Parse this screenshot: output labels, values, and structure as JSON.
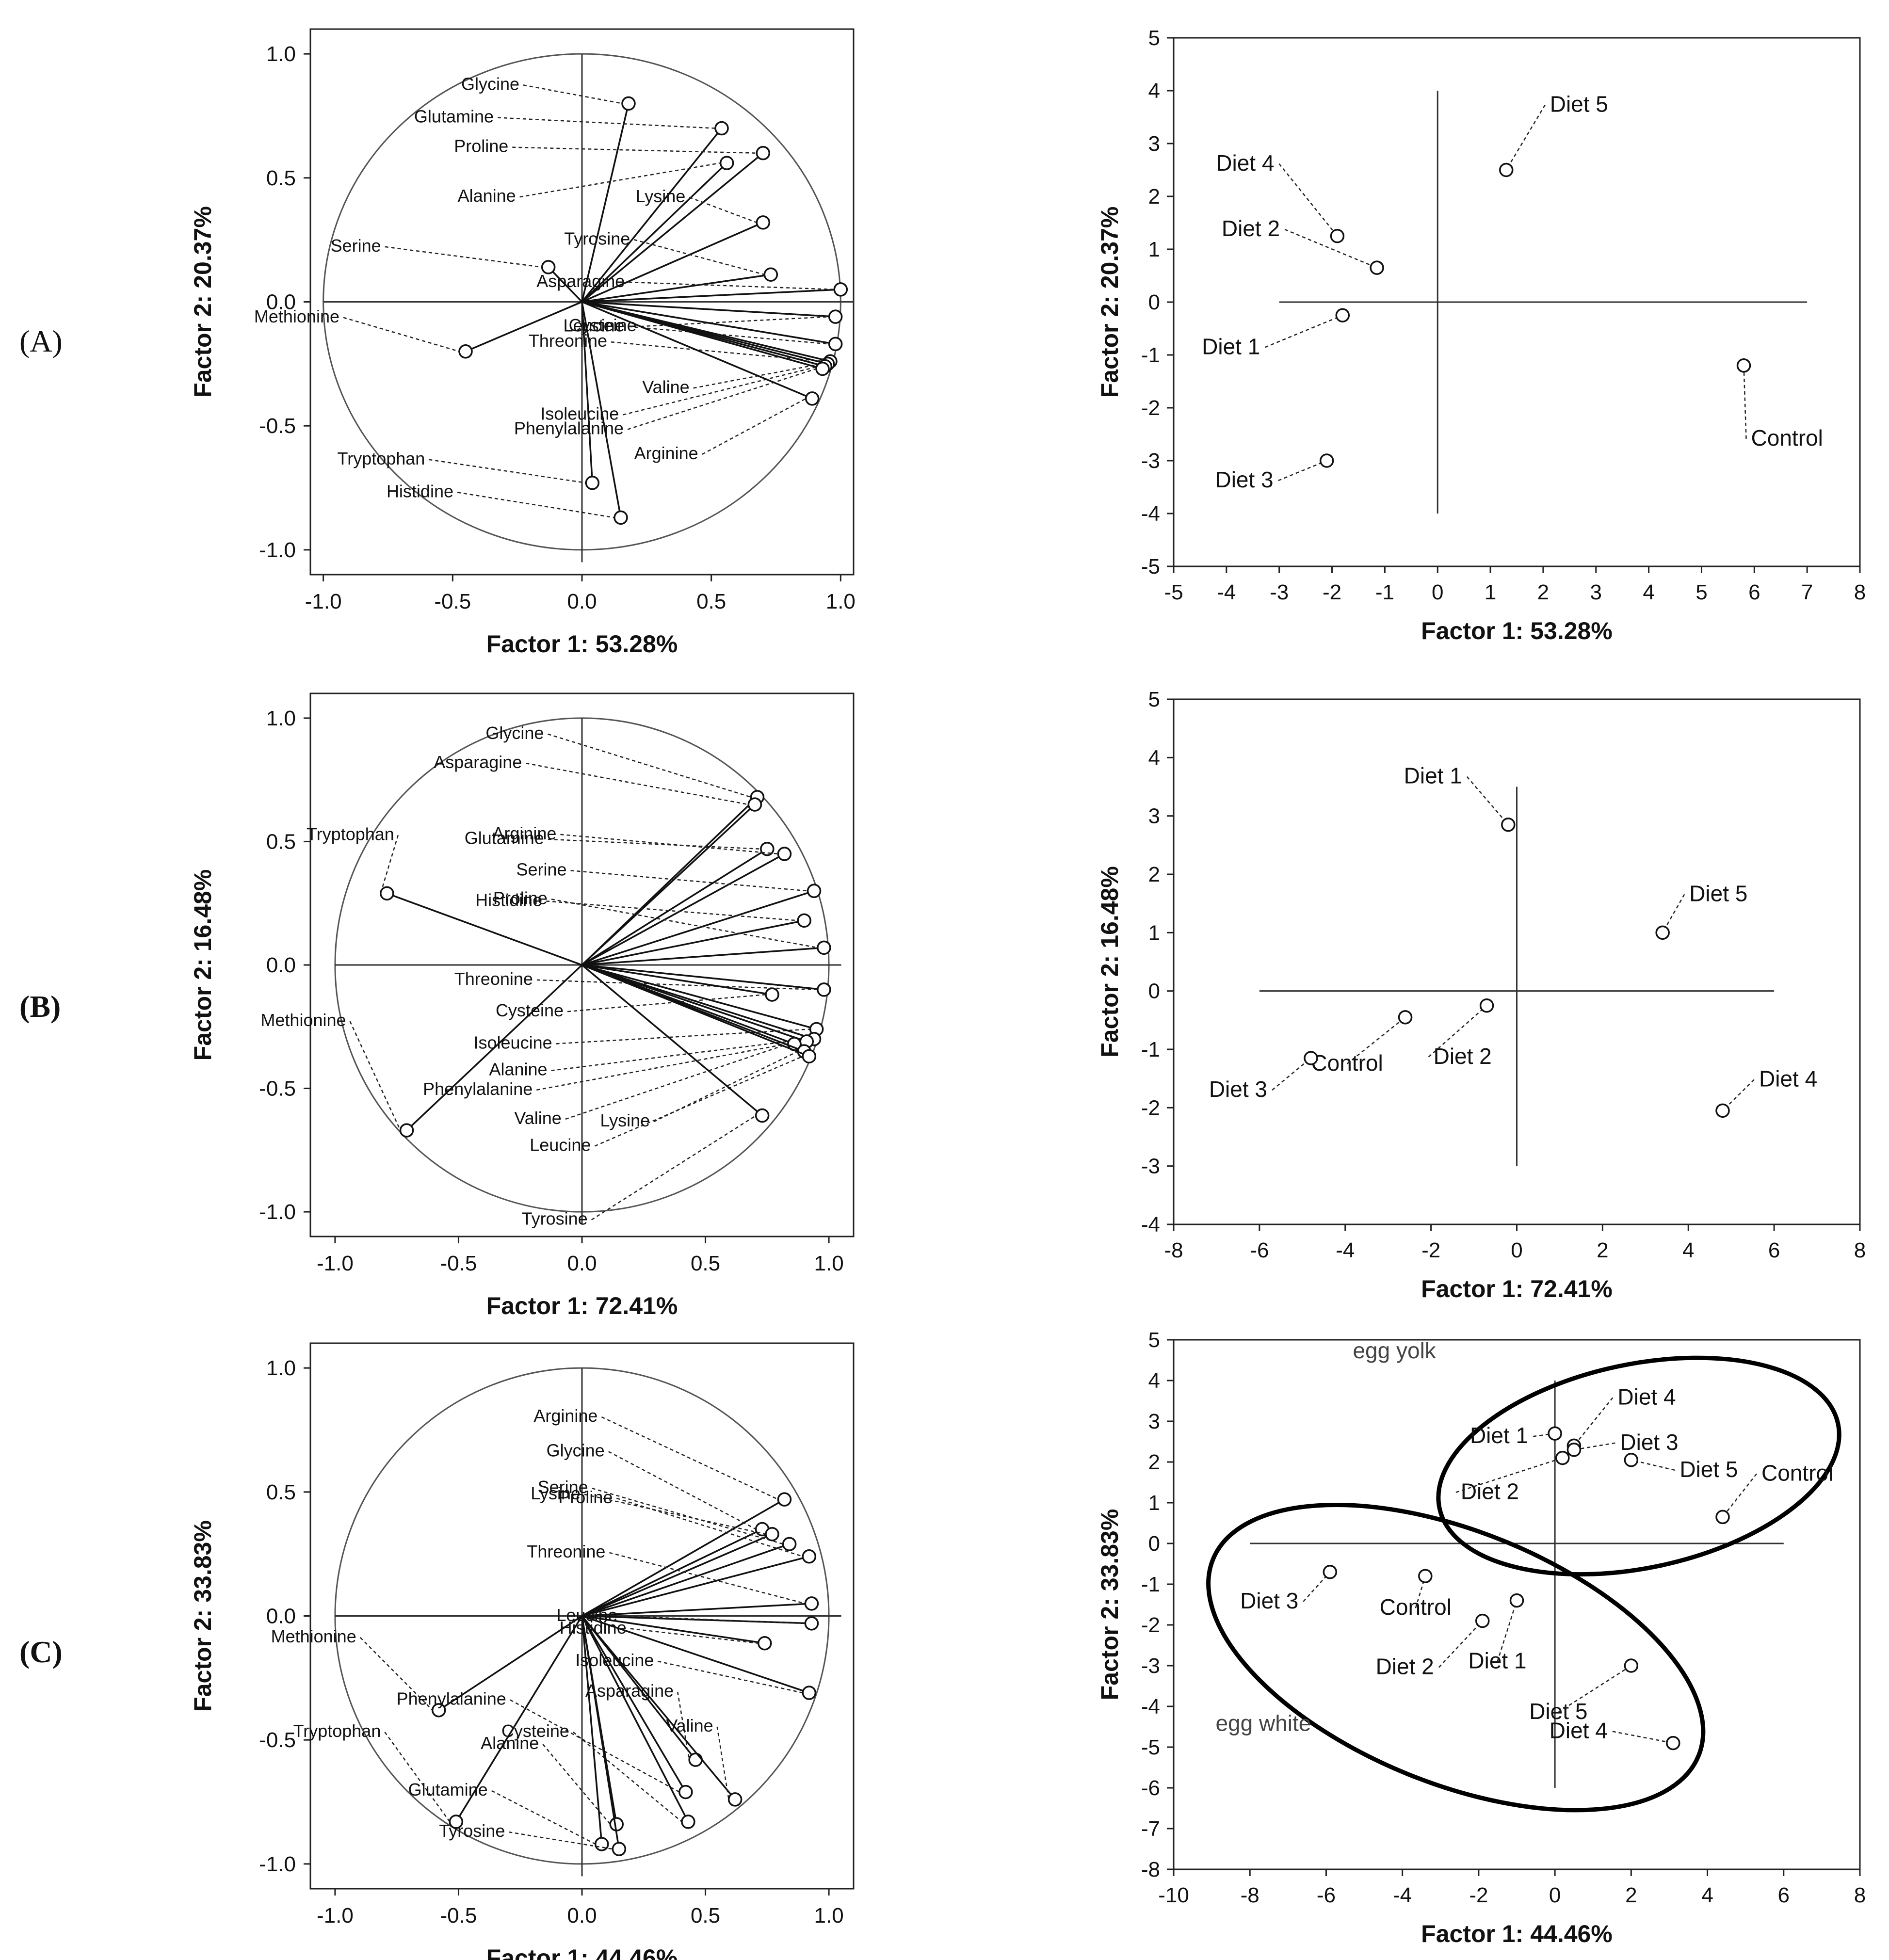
{
  "panels": [
    {
      "label": "(A)",
      "label_bold": false,
      "loadings": {
        "xlabel": "Factor 1: 53.28%",
        "ylabel": "Factor 2: 20.37%",
        "xticks": [
          "-1.0",
          "-0.5",
          "0.0",
          "0.5",
          "1.0"
        ],
        "yticks": [
          "1.0",
          "0.5",
          "0.0",
          "-0.5",
          "-1.0"
        ],
        "chart_data": {
          "type": "scatter",
          "title": "",
          "xlim": [
            -1.05,
            1.05
          ],
          "ylim": [
            -1.1,
            1.1
          ],
          "points": [
            {
              "name": "Glycine",
              "x": 0.18,
              "y": 0.8
            },
            {
              "name": "Glutamine",
              "x": 0.54,
              "y": 0.7
            },
            {
              "name": "Proline",
              "x": 0.7,
              "y": 0.6
            },
            {
              "name": "Alanine",
              "x": 0.56,
              "y": 0.56
            },
            {
              "name": "Lysine",
              "x": 0.7,
              "y": 0.32
            },
            {
              "name": "Tyrosine",
              "x": 0.73,
              "y": 0.11
            },
            {
              "name": "Asparagine",
              "x": 1.0,
              "y": 0.05
            },
            {
              "name": "Serine",
              "x": -0.13,
              "y": 0.14
            },
            {
              "name": "Cysteine",
              "x": 0.98,
              "y": -0.06
            },
            {
              "name": "Methionine",
              "x": -0.45,
              "y": -0.2
            },
            {
              "name": "Leucine",
              "x": 0.98,
              "y": -0.17
            },
            {
              "name": "Threonine",
              "x": 0.96,
              "y": -0.24
            },
            {
              "name": "Valine",
              "x": 0.95,
              "y": -0.25
            },
            {
              "name": "Isoleucine",
              "x": 0.94,
              "y": -0.26
            },
            {
              "name": "Phenylalanine",
              "x": 0.93,
              "y": -0.27
            },
            {
              "name": "Arginine",
              "x": 0.89,
              "y": -0.39
            },
            {
              "name": "Tryptophan",
              "x": 0.04,
              "y": -0.73
            },
            {
              "name": "Histidine",
              "x": 0.15,
              "y": -0.87
            }
          ]
        }
      },
      "scores": {
        "xlabel": "Factor 1: 53.28%",
        "ylabel": "Factor 2: 20.37%",
        "xticks": [
          "-5",
          "-4",
          "-3",
          "-2",
          "-1",
          "0",
          "1",
          "2",
          "3",
          "4",
          "5",
          "6",
          "7",
          "8"
        ],
        "yticks": [
          "5",
          "4",
          "3",
          "2",
          "1",
          "0",
          "-1",
          "-2",
          "-3",
          "-4",
          "-5"
        ],
        "chart_data": {
          "type": "scatter",
          "title": "",
          "xlim": [
            -5,
            8
          ],
          "ylim": [
            -5,
            5
          ],
          "points": [
            {
              "name": "Diet 5",
              "x": 1.3,
              "y": 2.5
            },
            {
              "name": "Diet 4",
              "x": -1.9,
              "y": 1.25
            },
            {
              "name": "Diet 2",
              "x": -1.15,
              "y": 0.65
            },
            {
              "name": "Diet 1",
              "x": -1.8,
              "y": -0.25
            },
            {
              "name": "Control",
              "x": 5.8,
              "y": -1.2
            },
            {
              "name": "Diet 3",
              "x": -2.1,
              "y": -3.0
            }
          ]
        }
      }
    },
    {
      "label": "(B)",
      "label_bold": true,
      "loadings": {
        "xlabel": "Factor 1: 72.41%",
        "ylabel": "Factor 2: 16.48%",
        "xticks": [
          "-1.0",
          "-0.5",
          "0.0",
          "0.5",
          "1.0"
        ],
        "yticks": [
          "1.0",
          "0.5",
          "0.0",
          "-0.5",
          "-1.0"
        ],
        "chart_data": {
          "type": "scatter",
          "title": "",
          "xlim": [
            -1.1,
            1.1
          ],
          "ylim": [
            -1.1,
            1.1
          ],
          "points": [
            {
              "name": "Glycine",
              "x": 0.71,
              "y": 0.68
            },
            {
              "name": "Asparagine",
              "x": 0.7,
              "y": 0.65
            },
            {
              "name": "Glutamine",
              "x": 0.75,
              "y": 0.47
            },
            {
              "name": "Arginine",
              "x": 0.82,
              "y": 0.45
            },
            {
              "name": "Serine",
              "x": 0.94,
              "y": 0.3
            },
            {
              "name": "Histidine",
              "x": 0.9,
              "y": 0.18
            },
            {
              "name": "Proline",
              "x": 0.98,
              "y": 0.07
            },
            {
              "name": "Tryptophan",
              "x": -0.79,
              "y": 0.29
            },
            {
              "name": "Threonine",
              "x": 0.98,
              "y": -0.1
            },
            {
              "name": "Cysteine",
              "x": 0.77,
              "y": -0.12
            },
            {
              "name": "Isoleucine",
              "x": 0.95,
              "y": -0.26
            },
            {
              "name": "Alanine",
              "x": 0.94,
              "y": -0.3
            },
            {
              "name": "Phenylalanine",
              "x": 0.91,
              "y": -0.31
            },
            {
              "name": "Valine",
              "x": 0.86,
              "y": -0.32
            },
            {
              "name": "Lysine",
              "x": 0.9,
              "y": -0.35
            },
            {
              "name": "Leucine",
              "x": 0.92,
              "y": -0.37
            },
            {
              "name": "Tyrosine",
              "x": 0.73,
              "y": -0.61
            },
            {
              "name": "Methionine",
              "x": -0.71,
              "y": -0.67
            }
          ]
        }
      },
      "scores": {
        "xlabel": "Factor 1: 72.41%",
        "ylabel": "Factor 2: 16.48%",
        "xticks": [
          "-8",
          "-6",
          "-4",
          "-2",
          "0",
          "2",
          "4",
          "6",
          "8"
        ],
        "yticks": [
          "5",
          "4",
          "3",
          "2",
          "1",
          "0",
          "-1",
          "-2",
          "-3",
          "-4"
        ],
        "chart_data": {
          "type": "scatter",
          "title": "",
          "xlim": [
            -8,
            8
          ],
          "ylim": [
            -4,
            5
          ],
          "points": [
            {
              "name": "Diet 1",
              "x": -0.2,
              "y": 2.85
            },
            {
              "name": "Diet 5",
              "x": 3.4,
              "y": 1.0
            },
            {
              "name": "Diet 2",
              "x": -0.7,
              "y": -0.25
            },
            {
              "name": "Control",
              "x": -2.6,
              "y": -0.45
            },
            {
              "name": "Diet 3",
              "x": -4.8,
              "y": -1.15
            },
            {
              "name": "Diet 4",
              "x": 4.8,
              "y": -2.05
            }
          ]
        }
      }
    },
    {
      "label": "(C)",
      "label_bold": true,
      "loadings": {
        "xlabel": "Factor 1: 44.46%",
        "ylabel": "Factor 2: 33.83%",
        "xticks": [
          "-1.0",
          "-0.5",
          "0.0",
          "0.5",
          "1.0"
        ],
        "yticks": [
          "1.0",
          "0.5",
          "0.0",
          "-0.5",
          "-1.0"
        ],
        "chart_data": {
          "type": "scatter",
          "title": "",
          "xlim": [
            -1.1,
            1.1
          ],
          "ylim": [
            -1.1,
            1.1
          ],
          "points": [
            {
              "name": "Arginine",
              "x": 0.82,
              "y": 0.47
            },
            {
              "name": "Glycine",
              "x": 0.73,
              "y": 0.35
            },
            {
              "name": "Lysine",
              "x": 0.77,
              "y": 0.33
            },
            {
              "name": "Serine",
              "x": 0.84,
              "y": 0.29
            },
            {
              "name": "Proline",
              "x": 0.92,
              "y": 0.24
            },
            {
              "name": "Threonine",
              "x": 0.93,
              "y": 0.05
            },
            {
              "name": "Leucine",
              "x": 0.93,
              "y": -0.03
            },
            {
              "name": "Histidine",
              "x": 0.74,
              "y": -0.11
            },
            {
              "name": "Isoleucine",
              "x": 0.92,
              "y": -0.31
            },
            {
              "name": "Methionine",
              "x": -0.58,
              "y": -0.38
            },
            {
              "name": "Tryptophan",
              "x": -0.51,
              "y": -0.83
            },
            {
              "name": "Asparagine",
              "x": 0.46,
              "y": -0.58
            },
            {
              "name": "Valine",
              "x": 0.62,
              "y": -0.74
            },
            {
              "name": "Phenylalanine",
              "x": 0.42,
              "y": -0.71
            },
            {
              "name": "Cysteine",
              "x": 0.43,
              "y": -0.83
            },
            {
              "name": "Alanine",
              "x": 0.14,
              "y": -0.84
            },
            {
              "name": "Glutamine",
              "x": 0.08,
              "y": -0.92
            },
            {
              "name": "Tyrosine",
              "x": 0.15,
              "y": -0.94
            }
          ]
        }
      },
      "scores": {
        "xlabel": "Factor 1: 44.46%",
        "ylabel": "Factor 2: 33.83%",
        "xticks": [
          "-10",
          "-8",
          "-6",
          "-4",
          "-2",
          "0",
          "2",
          "4",
          "6",
          "8"
        ],
        "yticks": [
          "5",
          "4",
          "3",
          "2",
          "1",
          "0",
          "-1",
          "-2",
          "-3",
          "-4",
          "-5",
          "-6",
          "-7",
          "-8"
        ],
        "groups": [
          "egg yolk",
          "egg white"
        ],
        "chart_data": {
          "type": "scatter",
          "title": "",
          "xlim": [
            -10,
            8
          ],
          "ylim": [
            -8,
            5
          ],
          "points": [
            {
              "name": "Diet 1",
              "x": 0.0,
              "y": 2.7
            },
            {
              "name": "Diet 4",
              "x": 0.5,
              "y": 2.4
            },
            {
              "name": "Diet 3",
              "x": 0.5,
              "y": 2.3
            },
            {
              "name": "Diet 2",
              "x": 0.2,
              "y": 2.1
            },
            {
              "name": "Diet 5",
              "x": 2.0,
              "y": 2.05
            },
            {
              "name": "Control",
              "x": 4.4,
              "y": 0.65
            },
            {
              "name": "Diet 3",
              "x": -5.9,
              "y": -0.7
            },
            {
              "name": "Control",
              "x": -3.4,
              "y": -0.8
            },
            {
              "name": "Diet 2",
              "x": -1.9,
              "y": -1.9
            },
            {
              "name": "Diet 1",
              "x": -1.0,
              "y": -1.4
            },
            {
              "name": "Diet 5",
              "x": 2.0,
              "y": -3.0
            },
            {
              "name": "Diet 4",
              "x": 3.1,
              "y": -4.9
            }
          ]
        }
      }
    }
  ]
}
